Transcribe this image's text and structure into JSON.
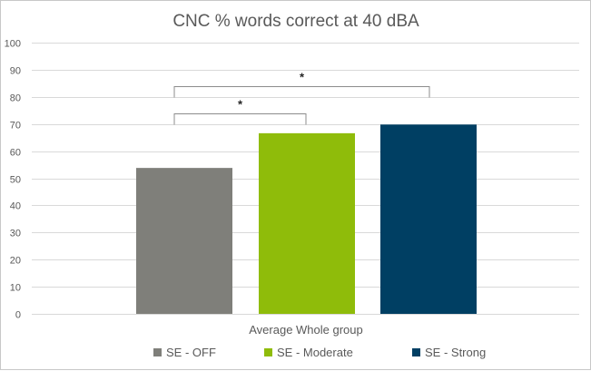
{
  "chart_data": {
    "type": "bar",
    "title": "CNC % words correct at 40 dBA",
    "xlabel": "",
    "ylabel": "",
    "categories": [
      "Average Whole group"
    ],
    "series": [
      {
        "name": "SE - OFF",
        "values": [
          53.8
        ],
        "color": "#7f7f7a"
      },
      {
        "name": "SE - Moderate",
        "values": [
          66.6
        ],
        "color": "#8fbc0a"
      },
      {
        "name": "SE - Strong",
        "values": [
          69.8
        ],
        "color": "#003f63"
      }
    ],
    "ylim": [
      0,
      100
    ],
    "yticks": [
      0,
      10,
      20,
      30,
      40,
      50,
      60,
      70,
      80,
      90,
      100
    ],
    "grid": true,
    "legend": "bottom",
    "annotations": [
      {
        "label": "*",
        "from": "SE - OFF",
        "to": "SE - Moderate",
        "level": 74
      },
      {
        "label": "*",
        "from": "SE - OFF",
        "to": "SE - Strong",
        "level": 84
      }
    ],
    "colors": {
      "grid": "#d9d9d9",
      "bracket": "#8c8c8c",
      "text": "#595959"
    }
  }
}
